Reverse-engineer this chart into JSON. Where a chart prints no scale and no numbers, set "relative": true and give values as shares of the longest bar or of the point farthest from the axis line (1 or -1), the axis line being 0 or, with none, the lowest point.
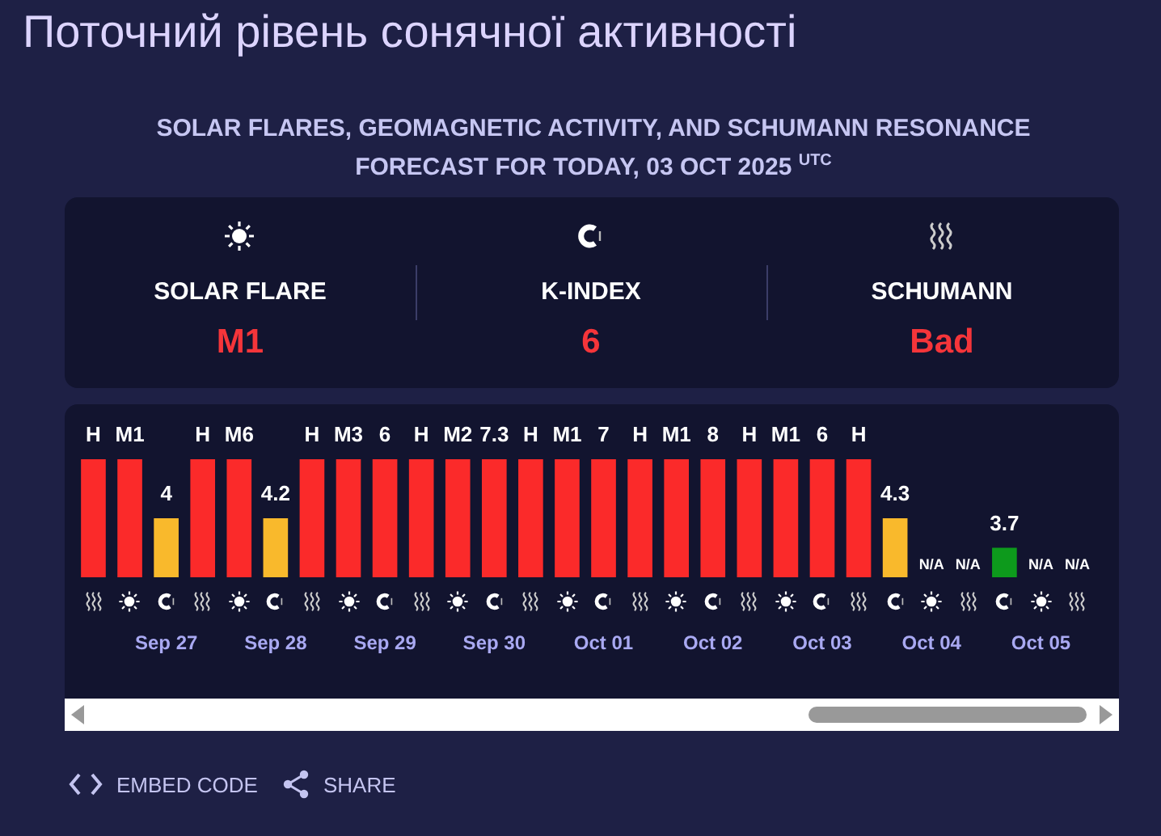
{
  "chart_data": {
    "type": "bar",
    "title": "Поточний рівень сонячної активності",
    "subtitle": "SOLAR FLARES, GEOMAGNETIC ACTIVITY, AND SCHUMANN RESONANCE FORECAST FOR TODAY, 03 OCT 2025 $^{UTC}$",
    "relative": true,
    "categories": [
      null,
      null,
      "Sep 27",
      null,
      null,
      "Sep 28",
      null,
      null,
      "Sep 29",
      null,
      null,
      "Sep 30",
      null,
      null,
      "Oct 01",
      null,
      null,
      "Oct 02",
      null,
      null,
      "Oct 03",
      null,
      null,
      "Oct 04",
      null,
      null,
      "Oct 05",
      null
    ],
    "values": [
      1,
      1,
      0.5,
      1,
      1,
      0.5,
      1,
      1,
      1,
      1,
      1,
      1,
      1,
      1,
      1,
      1,
      1,
      1,
      1,
      1,
      1,
      1,
      0.5,
      null,
      null,
      0.25,
      null,
      null
    ],
    "colors": [
      "#fb2a2a",
      "#fb2a2a",
      "#f9b92c",
      "#fb2a2a",
      "#fb2a2a",
      "#f9b92c",
      "#fb2a2a",
      "#fb2a2a",
      "#fb2a2a",
      "#fb2a2a",
      "#fb2a2a",
      "#fb2a2a",
      "#fb2a2a",
      "#fb2a2a",
      "#fb2a2a",
      "#fb2a2a",
      "#fb2a2a",
      "#fb2a2a",
      "#fb2a2a",
      "#fb2a2a",
      "#fb2a2a",
      "#fb2a2a",
      "#f9b92c",
      null,
      null,
      "#0d9a1c",
      null,
      null
    ],
    "annotations": [
      "SOLAR FLARE",
      "M1",
      "K-INDEX",
      "6",
      "SCHUMANN",
      "Bad",
      "EMBED CODE",
      "SHARE",
      "H",
      "M1",
      "4",
      "H",
      "M6",
      "4.2",
      "H",
      "M3",
      "6",
      "H",
      "M2",
      "7.3",
      "H",
      "M1",
      "7",
      "H",
      "M1",
      "8",
      "H",
      "M1",
      "6",
      "H",
      "4.3",
      "N/A",
      "N/A",
      "3.7",
      "N/A",
      "N/A"
    ],
    "grid": false,
    "legend": false
  }
}
